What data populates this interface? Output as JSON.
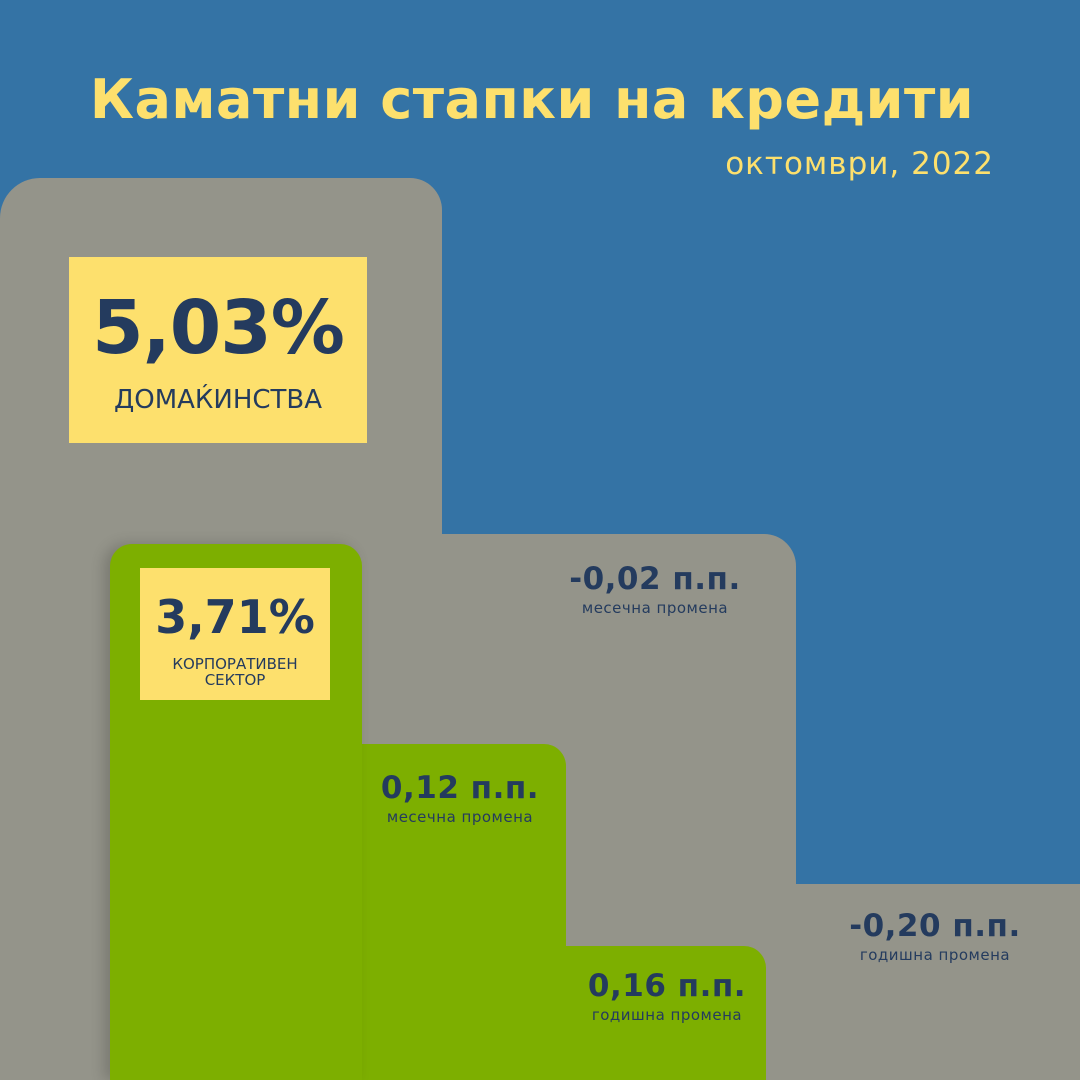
{
  "title": "Каматни стапки на кредити",
  "subtitle": "октомври, 2022",
  "colors": {
    "background": "#3473a5",
    "gray": "#94948a",
    "green": "#7daf00",
    "yellow": "#fde06d",
    "text_dark": "#243b5e",
    "title_yellow": "#fde06d"
  },
  "households": {
    "rate": "5,03%",
    "label": "ДОМАЌИНСТВА",
    "monthly_change": {
      "value": "-0,02 п.п.",
      "label": "месечна промена"
    },
    "yearly_change": {
      "value": "-0,20 п.п.",
      "label": "годишна промена"
    }
  },
  "corporate": {
    "rate": "3,71%",
    "label": "КОРПОРАТИВЕН СЕКТОР",
    "monthly_change": {
      "value": "0,12 п.п.",
      "label": "месечна промена"
    },
    "yearly_change": {
      "value": "0,16 п.п.",
      "label": "годишна промена"
    }
  }
}
